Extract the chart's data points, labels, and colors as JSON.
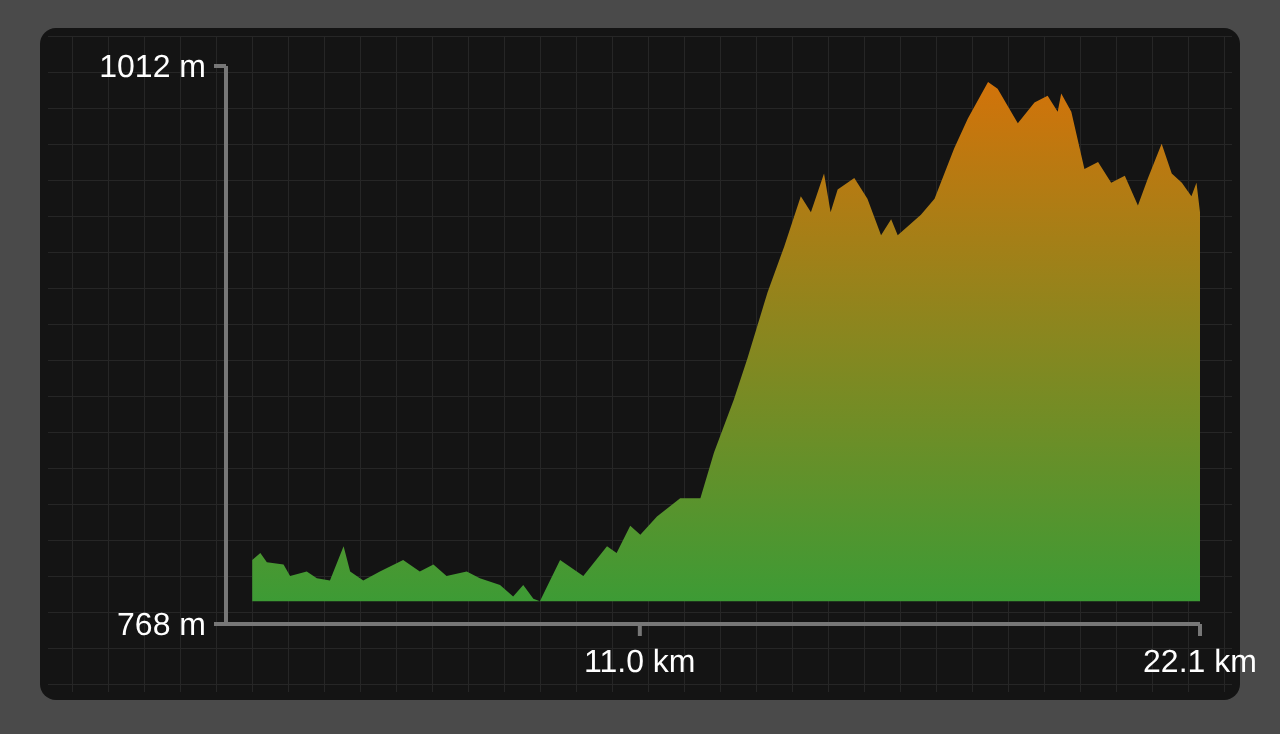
{
  "chart_data": {
    "type": "area",
    "x": [
      3.32,
      3.48,
      3.61,
      3.94,
      4.07,
      4.4,
      4.6,
      4.86,
      5.13,
      5.26,
      5.52,
      5.85,
      6.31,
      6.64,
      6.91,
      7.17,
      7.57,
      7.83,
      8.23,
      8.49,
      8.69,
      8.89,
      9.02,
      9.42,
      9.88,
      10.35,
      10.54,
      10.81,
      11.01,
      11.34,
      11.8,
      12.2,
      12.47,
      12.86,
      13.13,
      13.53,
      13.86,
      14.19,
      14.39,
      14.65,
      14.78,
      14.92,
      15.25,
      15.51,
      15.78,
      15.98,
      16.11,
      16.57,
      16.84,
      17.23,
      17.5,
      17.9,
      18.09,
      18.49,
      18.82,
      19.08,
      19.28,
      19.35,
      19.55,
      19.81,
      20.08,
      20.34,
      20.61,
      20.87,
      21.07,
      21.34,
      21.54,
      21.74,
      21.93,
      22.03,
      22.1
    ],
    "series": [
      {
        "color": "#3d9b35",
        "values": [
          796,
          799,
          795,
          794,
          789,
          791,
          788,
          787,
          802,
          791,
          787,
          791,
          796,
          791,
          794,
          789,
          791,
          788,
          785,
          780,
          785,
          779,
          778,
          796,
          789,
          802,
          799,
          811,
          807,
          815,
          823,
          823,
          843,
          866,
          884,
          913,
          933,
          955,
          948,
          965,
          948,
          958,
          963,
          954,
          938,
          945,
          938,
          947,
          954,
          976,
          989,
          1005,
          1002,
          987,
          996,
          999,
          992,
          1000,
          992,
          967,
          970,
          961,
          964,
          951,
          963,
          978,
          965,
          961,
          955,
          961,
          948
        ]
      }
    ],
    "xlim": [
      2.8,
      22.1
    ],
    "ylim": [
      768,
      1012
    ],
    "xticks": [
      {
        "value": 11.0,
        "label": "11.0 km"
      },
      {
        "value": 22.1,
        "label": "22.1 km"
      }
    ],
    "yticks": [
      {
        "value": 768,
        "label": "768 m"
      },
      {
        "value": 1012,
        "label": "1012 m"
      }
    ],
    "grid": false
  }
}
